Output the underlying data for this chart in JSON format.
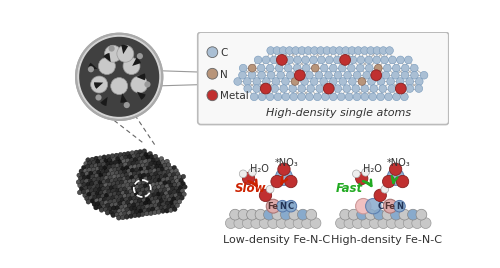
{
  "bg_color": "#ffffff",
  "top_box_label": "High-density single atoms",
  "low_density_label": "Low-density Fe-N-C",
  "high_density_label": "High-density Fe-N-C",
  "slow_text": "Slow",
  "fast_text": "Fast",
  "slow_color": "#cc2200",
  "fast_color": "#22aa22",
  "h2o_label": "H₂O",
  "no3_label": "*NO₃",
  "atom_colors": {
    "C_light": "#aabfd4",
    "N_brown": "#b8957a",
    "metal_red": "#c03030",
    "fe_pink": "#e8b8b8",
    "gray_base": "#c0c0c0",
    "blue_site": "#7aaccc",
    "white_h": "#f0f0f0",
    "dark_atom": "#252525"
  }
}
